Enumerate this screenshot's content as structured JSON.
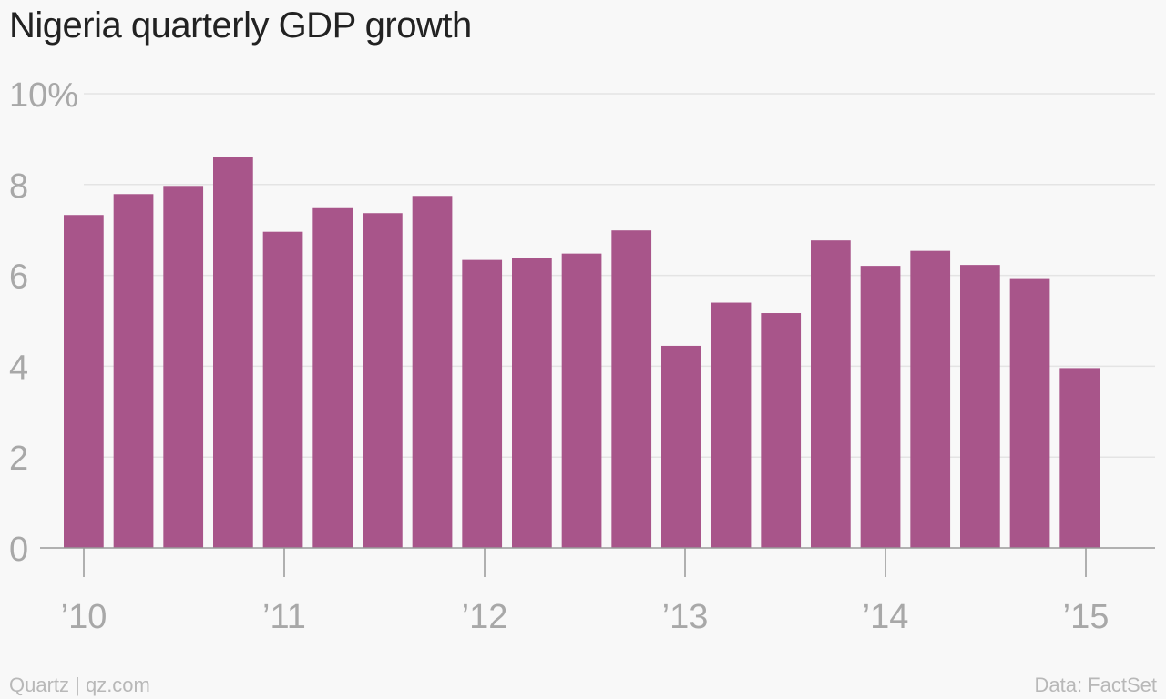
{
  "chart_data": {
    "type": "bar",
    "title": "Nigeria quarterly GDP growth",
    "xlabel": "",
    "ylabel": "",
    "ylim": [
      0,
      10
    ],
    "y_ticks": [
      0,
      2,
      4,
      6,
      8,
      10
    ],
    "y_tick_labels": [
      "0",
      "2",
      "4",
      "6",
      "8",
      "10%"
    ],
    "x_ticks": [
      2010,
      2011,
      2012,
      2013,
      2014,
      2015
    ],
    "x_tick_labels": [
      "’10",
      "’11",
      "’12",
      "’13",
      "’14",
      "’15"
    ],
    "categories": [
      "2010 Q1",
      "2010 Q2",
      "2010 Q3",
      "2010 Q4",
      "2011 Q1",
      "2011 Q2",
      "2011 Q3",
      "2011 Q4",
      "2012 Q1",
      "2012 Q2",
      "2012 Q3",
      "2012 Q4",
      "2013 Q1",
      "2013 Q2",
      "2013 Q3",
      "2013 Q4",
      "2014 Q1",
      "2014 Q2",
      "2014 Q3",
      "2014 Q4",
      "2015 Q1"
    ],
    "values": [
      7.33,
      7.79,
      7.97,
      8.6,
      6.96,
      7.5,
      7.37,
      7.75,
      6.34,
      6.39,
      6.48,
      6.99,
      4.45,
      5.4,
      5.17,
      6.77,
      6.21,
      6.54,
      6.23,
      5.94,
      3.96
    ],
    "bar_color": "#a8558a",
    "grid": true,
    "legend": "none"
  },
  "footer": {
    "source_left": "Quartz | qz.com",
    "source_right": "Data: FactSet"
  },
  "colors": {
    "background": "#f8f8f8",
    "grid": "#e4e4e4",
    "axis": "#999999",
    "tick_text": "#a8a8a8"
  }
}
